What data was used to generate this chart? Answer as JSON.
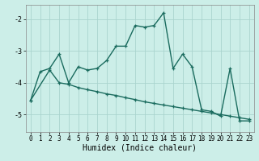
{
  "title": "",
  "xlabel": "Humidex (Indice chaleur)",
  "bg_color": "#cceee8",
  "grid_color": "#aad4ce",
  "line_color": "#1a6b5e",
  "xlim": [
    -0.5,
    23.5
  ],
  "ylim": [
    -5.55,
    -1.55
  ],
  "yticks": [
    -5,
    -4,
    -3,
    -2
  ],
  "xticks": [
    0,
    1,
    2,
    3,
    4,
    5,
    6,
    7,
    8,
    9,
    10,
    11,
    12,
    13,
    14,
    15,
    16,
    17,
    18,
    19,
    20,
    21,
    22,
    23
  ],
  "line1_x": [
    0,
    1,
    2,
    3,
    4,
    5,
    6,
    7,
    8,
    9,
    10,
    11,
    12,
    13,
    14,
    15,
    16,
    17,
    18,
    19,
    20,
    21,
    22,
    23
  ],
  "line1_y": [
    -4.55,
    -3.65,
    -3.55,
    -3.1,
    -4.0,
    -3.5,
    -3.6,
    -3.55,
    -3.3,
    -2.85,
    -2.85,
    -2.2,
    -2.25,
    -2.2,
    -1.8,
    -3.55,
    -3.1,
    -3.5,
    -4.85,
    -4.9,
    -5.05,
    -3.55,
    -5.2,
    -5.2
  ],
  "line2_x": [
    0,
    2,
    3,
    4,
    5,
    6,
    7,
    8,
    9,
    10,
    11,
    12,
    13,
    14,
    15,
    16,
    17,
    18,
    19,
    20,
    21,
    22,
    23
  ],
  "line2_y": [
    -4.55,
    -3.6,
    -4.0,
    -4.05,
    -4.15,
    -4.22,
    -4.28,
    -4.35,
    -4.4,
    -4.47,
    -4.53,
    -4.6,
    -4.65,
    -4.7,
    -4.75,
    -4.8,
    -4.85,
    -4.9,
    -4.95,
    -5.0,
    -5.05,
    -5.1,
    -5.15
  ],
  "marker": "+",
  "markersize": 3.5,
  "linewidth": 1.0,
  "tick_fontsize": 5.5,
  "label_fontsize": 7.0
}
